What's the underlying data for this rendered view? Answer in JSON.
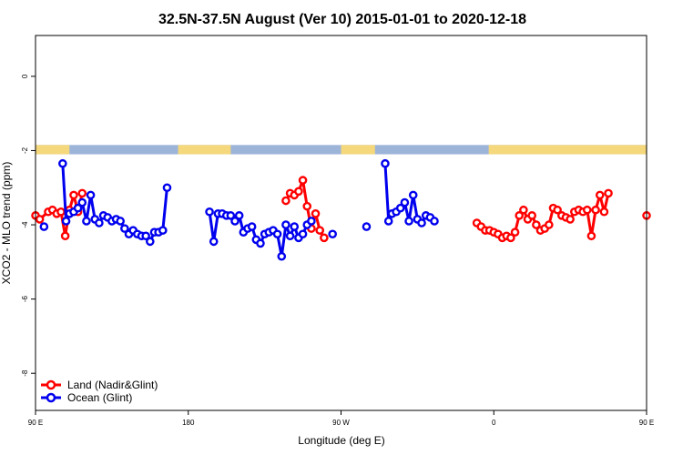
{
  "chart_data": {
    "type": "line",
    "title": "32.5N-37.5N August (Ver 10)   2015-01-01 to 2020-12-18",
    "xlabel": "Longitude (deg E)",
    "ylabel": "XCO2 - MLO trend (ppm)",
    "xlim": [
      90,
      450
    ],
    "ylim": [
      -9,
      1.1
    ],
    "x_ticks": [
      {
        "value": 90,
        "label": "90 E"
      },
      {
        "value": 180,
        "label": "180"
      },
      {
        "value": 270,
        "label": "90 W"
      },
      {
        "value": 360,
        "label": "0"
      },
      {
        "value": 450,
        "label": "90 E"
      },
      {
        "value": 540,
        "label": "180"
      }
    ],
    "y_ticks": [
      {
        "value": 0,
        "label": "0"
      },
      {
        "value": -2,
        "label": "-2"
      },
      {
        "value": -4,
        "label": "-4"
      },
      {
        "value": -6,
        "label": "-6"
      },
      {
        "value": -8,
        "label": "-8"
      }
    ],
    "legend_position": "bottom-left",
    "colors": {
      "land": "#ff0000",
      "ocean": "#0000ee",
      "land_mask": "#f5d77c",
      "sea_mask": "#9db4d9"
    },
    "series": [
      {
        "name": "Land (Nadir&Glint)",
        "color": "#ff0000",
        "points": [
          [
            90,
            -3.75
          ],
          [
            92.5,
            -3.85
          ],
          [
            97.5,
            -3.65
          ],
          [
            100,
            -3.6
          ],
          [
            102.5,
            -3.7
          ],
          [
            105,
            -3.65
          ],
          [
            107.5,
            -4.3
          ],
          [
            110,
            -3.6
          ],
          [
            112.5,
            -3.2
          ],
          [
            115,
            -3.65
          ],
          [
            117.5,
            -3.15
          ],
          [
            null,
            null
          ],
          [
            237.5,
            -3.35
          ],
          [
            240,
            -3.15
          ],
          [
            242.5,
            -3.2
          ],
          [
            245,
            -3.1
          ],
          [
            247.5,
            -2.8
          ],
          [
            250,
            -3.5
          ],
          [
            252.5,
            -4.1
          ],
          [
            255,
            -3.7
          ],
          [
            257.5,
            -4.15
          ],
          [
            260,
            -4.35
          ],
          [
            null,
            null
          ],
          [
            350,
            -3.95
          ],
          [
            352.5,
            -4.05
          ],
          [
            355,
            -4.15
          ],
          [
            357.5,
            -4.15
          ],
          [
            360,
            -4.2
          ],
          [
            362.5,
            -4.25
          ],
          [
            365,
            -4.35
          ],
          [
            367.5,
            -4.3
          ],
          [
            370,
            -4.35
          ],
          [
            372.5,
            -4.2
          ],
          [
            375,
            -3.75
          ],
          [
            377.5,
            -3.6
          ],
          [
            380,
            -3.85
          ],
          [
            382.5,
            -3.75
          ],
          [
            385,
            -4.0
          ],
          [
            387.5,
            -4.15
          ],
          [
            390,
            -4.1
          ],
          [
            392.5,
            -4.0
          ],
          [
            395,
            -3.55
          ],
          [
            397.5,
            -3.6
          ],
          [
            400,
            -3.75
          ],
          [
            402.5,
            -3.8
          ],
          [
            405,
            -3.85
          ],
          [
            407.5,
            -3.65
          ],
          [
            410,
            -3.6
          ],
          [
            412.5,
            -3.65
          ],
          [
            415,
            -3.6
          ],
          [
            417.5,
            -4.3
          ],
          [
            420,
            -3.6
          ],
          [
            422.5,
            -3.2
          ],
          [
            425,
            -3.65
          ],
          [
            427.5,
            -3.15
          ]
        ]
      },
      {
        "name": "Ocean (Glint)",
        "color": "#0000ee",
        "points": [
          [
            95,
            -4.05
          ],
          [
            null,
            null
          ],
          [
            106,
            -2.35
          ],
          [
            108,
            -3.9
          ],
          [
            110,
            -3.7
          ],
          [
            112.5,
            -3.65
          ],
          [
            115,
            -3.55
          ],
          [
            117.5,
            -3.4
          ],
          [
            120,
            -3.9
          ],
          [
            122.5,
            -3.2
          ],
          [
            125,
            -3.85
          ],
          [
            127.5,
            -3.95
          ],
          [
            130,
            -3.75
          ],
          [
            132.5,
            -3.8
          ],
          [
            135,
            -3.9
          ],
          [
            137.5,
            -3.85
          ],
          [
            140,
            -3.9
          ],
          [
            142.5,
            -4.1
          ],
          [
            145,
            -4.25
          ],
          [
            147.5,
            -4.15
          ],
          [
            150,
            -4.25
          ],
          [
            152.5,
            -4.3
          ],
          [
            155,
            -4.3
          ],
          [
            157.5,
            -4.45
          ],
          [
            160,
            -4.2
          ],
          [
            162.5,
            -4.2
          ],
          [
            165,
            -4.15
          ],
          [
            167.5,
            -3.0
          ],
          [
            null,
            null
          ],
          [
            192.5,
            -3.65
          ],
          [
            195,
            -4.45
          ],
          [
            197.5,
            -3.7
          ],
          [
            200,
            -3.7
          ],
          [
            202.5,
            -3.75
          ],
          [
            205,
            -3.75
          ],
          [
            207.5,
            -3.9
          ],
          [
            210,
            -3.75
          ],
          [
            212.5,
            -4.2
          ],
          [
            215,
            -4.1
          ],
          [
            217.5,
            -4.05
          ],
          [
            220,
            -4.4
          ],
          [
            222.5,
            -4.5
          ],
          [
            225,
            -4.25
          ],
          [
            227.5,
            -4.2
          ],
          [
            230,
            -4.15
          ],
          [
            232.5,
            -4.25
          ],
          [
            235,
            -4.85
          ],
          [
            237.5,
            -4.0
          ],
          [
            240,
            -4.3
          ],
          [
            242.5,
            -4.05
          ],
          [
            245,
            -4.35
          ],
          [
            247.5,
            -4.25
          ],
          [
            250,
            -4.0
          ],
          [
            252.5,
            -3.9
          ],
          [
            null,
            null
          ],
          [
            265,
            -4.25
          ],
          [
            null,
            null
          ],
          [
            285,
            -4.05
          ],
          [
            null,
            null
          ],
          [
            296,
            -2.35
          ],
          [
            298,
            -3.9
          ],
          [
            300,
            -3.7
          ],
          [
            302.5,
            -3.65
          ],
          [
            305,
            -3.55
          ],
          [
            307.5,
            -3.4
          ],
          [
            310,
            -3.9
          ],
          [
            312.5,
            -3.2
          ],
          [
            315,
            -3.85
          ],
          [
            317.5,
            -3.95
          ],
          [
            320,
            -3.75
          ],
          [
            322.5,
            -3.8
          ],
          [
            325,
            -3.9
          ]
        ]
      }
    ]
  },
  "legend": {
    "land_label": "Land (Nadir&Glint)",
    "ocean_label": "Ocean (Glint)"
  }
}
